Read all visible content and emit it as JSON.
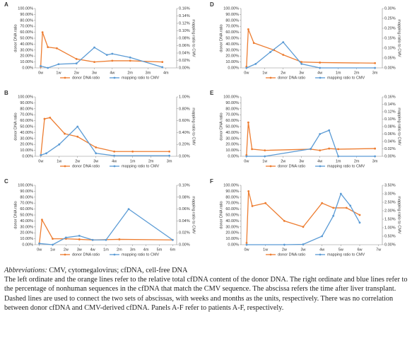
{
  "chart_data": [
    {
      "type": "line",
      "panel": "A",
      "ylabel": "donor DNA ratio",
      "y2label": "mapping ratio to CMV",
      "xlim": [
        -0.3,
        7.6
      ],
      "xticks": [
        {
          "value": 0,
          "label": "0w"
        },
        {
          "value": 1,
          "label": "1w"
        },
        {
          "value": 2,
          "label": "2w"
        },
        {
          "value": 3,
          "label": "3w"
        },
        {
          "value": 4,
          "label": "4w"
        },
        {
          "value": 5,
          "label": "2m"
        },
        {
          "value": 6,
          "label": "3m"
        },
        {
          "value": 7,
          "label": "4m"
        }
      ],
      "ylim": [
        0,
        100
      ],
      "yticks": [
        {
          "value": 0,
          "label": "0.00%"
        },
        {
          "value": 10,
          "label": "10.00%"
        },
        {
          "value": 20,
          "label": "20.00%"
        },
        {
          "value": 30,
          "label": "30.00%"
        },
        {
          "value": 40,
          "label": "40.00%"
        },
        {
          "value": 50,
          "label": "50.00%"
        },
        {
          "value": 60,
          "label": "60.00%"
        },
        {
          "value": 70,
          "label": "70.00%"
        },
        {
          "value": 80,
          "label": "80.00%"
        },
        {
          "value": 90,
          "label": "90.00%"
        },
        {
          "value": 100,
          "label": "100.00%"
        }
      ],
      "y2lim": [
        0,
        0.16
      ],
      "y2ticks": [
        {
          "value": 0,
          "label": "0.00%"
        },
        {
          "value": 0.02,
          "label": "0.02%"
        },
        {
          "value": 0.04,
          "label": "0.04%"
        },
        {
          "value": 0.06,
          "label": "0.06%"
        },
        {
          "value": 0.08,
          "label": "0.08%"
        },
        {
          "value": 0.1,
          "label": "0.10%"
        },
        {
          "value": 0.12,
          "label": "0.12%"
        },
        {
          "value": 0.14,
          "label": "0.14%"
        },
        {
          "value": 0.16,
          "label": "0.16%"
        }
      ],
      "series": [
        {
          "name": "donor DNA ratio",
          "color": "#ed7d31",
          "x": [
            0,
            0.1,
            0.4,
            0.9,
            2,
            3,
            4,
            5,
            6.8
          ],
          "values": [
            2,
            60,
            35,
            33,
            15,
            10,
            12,
            12,
            10
          ]
        },
        {
          "name": "mapping ratio to CMV",
          "color": "#5b9bd5",
          "axis": "y2",
          "x": [
            0,
            0.4,
            1,
            2,
            3,
            3.7,
            4,
            5,
            6.8
          ],
          "values": [
            0.005,
            0,
            0.01,
            0.012,
            0.055,
            0.035,
            0.038,
            0.028,
            0.002
          ]
        }
      ]
    },
    {
      "type": "line",
      "panel": "B",
      "ylabel": "donor DNA ratio",
      "y2label": "mapping ratio to CMV",
      "xlim": [
        -0.3,
        7.4
      ],
      "xticks": [
        {
          "value": 0,
          "label": "0w"
        },
        {
          "value": 1,
          "label": "1w"
        },
        {
          "value": 2,
          "label": "2w"
        },
        {
          "value": 3,
          "label": "3w"
        },
        {
          "value": 4,
          "label": "4w"
        },
        {
          "value": 5,
          "label": "1m"
        },
        {
          "value": 6,
          "label": "2m"
        },
        {
          "value": 7,
          "label": "3m"
        }
      ],
      "ylim": [
        0,
        100
      ],
      "yticks": [
        {
          "value": 0,
          "label": "0.00%"
        },
        {
          "value": 10,
          "label": "10.00%"
        },
        {
          "value": 20,
          "label": "20.00%"
        },
        {
          "value": 30,
          "label": "30.00%"
        },
        {
          "value": 40,
          "label": "40.00%"
        },
        {
          "value": 50,
          "label": "50.00%"
        },
        {
          "value": 60,
          "label": "60.00%"
        },
        {
          "value": 70,
          "label": "70.00%"
        },
        {
          "value": 80,
          "label": "80.00%"
        },
        {
          "value": 90,
          "label": "90.00%"
        },
        {
          "value": 100,
          "label": "100.00%"
        }
      ],
      "y2lim": [
        0,
        1
      ],
      "y2ticks": [
        {
          "value": 0,
          "label": "0.00%"
        },
        {
          "value": 0.2,
          "label": "0.20%"
        },
        {
          "value": 0.4,
          "label": "0.40%"
        },
        {
          "value": 0.6,
          "label": "0.60%"
        },
        {
          "value": 0.8,
          "label": "0.80%"
        },
        {
          "value": 1,
          "label": "1.00%"
        }
      ],
      "series": [
        {
          "name": "donor DNA ratio",
          "color": "#ed7d31",
          "x": [
            0,
            0.2,
            0.5,
            1.3,
            2,
            3,
            4,
            5,
            7
          ],
          "values": [
            2,
            63,
            65,
            38,
            33,
            15,
            8,
            8,
            8
          ]
        },
        {
          "name": "mapping ratio to CMV",
          "color": "#5b9bd5",
          "axis": "y2",
          "x": [
            0,
            0.3,
            1,
            2,
            3,
            4,
            7
          ],
          "values": [
            0.02,
            0.05,
            0.2,
            0.5,
            0.05,
            0.01,
            0.01
          ]
        }
      ]
    },
    {
      "type": "line",
      "panel": "C",
      "ylabel": "donor DNA ratio",
      "y2label": "mapping ratio to CMV",
      "xlim": [
        -0.3,
        10.3
      ],
      "xticks": [
        {
          "value": 0,
          "label": "0w"
        },
        {
          "value": 1,
          "label": "1w"
        },
        {
          "value": 2,
          "label": "2w"
        },
        {
          "value": 3,
          "label": "3w"
        },
        {
          "value": 4,
          "label": "4w"
        },
        {
          "value": 5,
          "label": "1m"
        },
        {
          "value": 6,
          "label": "2m"
        },
        {
          "value": 7,
          "label": "3m"
        },
        {
          "value": 8,
          "label": "4m"
        },
        {
          "value": 9,
          "label": "5m"
        },
        {
          "value": 10,
          "label": "6m"
        }
      ],
      "ylim": [
        0,
        100
      ],
      "yticks": [
        {
          "value": 0,
          "label": "0.00%"
        },
        {
          "value": 10,
          "label": "10.00%"
        },
        {
          "value": 20,
          "label": "20.00%"
        },
        {
          "value": 30,
          "label": "30.00%"
        },
        {
          "value": 40,
          "label": "40.00%"
        },
        {
          "value": 50,
          "label": "50.00%"
        },
        {
          "value": 60,
          "label": "60.00%"
        },
        {
          "value": 70,
          "label": "70.00%"
        },
        {
          "value": 80,
          "label": "80.00%"
        },
        {
          "value": 90,
          "label": "90.00%"
        },
        {
          "value": 100,
          "label": "100.00%"
        }
      ],
      "y2lim": [
        0,
        0.1
      ],
      "y2ticks": [
        {
          "value": 0,
          "label": "0.00%"
        },
        {
          "value": 0.02,
          "label": "0.02%"
        },
        {
          "value": 0.04,
          "label": "0.04%"
        },
        {
          "value": 0.06,
          "label": "0.06%"
        },
        {
          "value": 0.08,
          "label": "0.08%"
        },
        {
          "value": 0.1,
          "label": "0.10%"
        }
      ],
      "series": [
        {
          "name": "donor DNA ratio",
          "color": "#ed7d31",
          "x": [
            0,
            0.2,
            1,
            2,
            3,
            4,
            6,
            10
          ],
          "values": [
            2,
            42,
            10,
            10,
            9,
            8,
            9,
            8
          ]
        },
        {
          "name": "mapping ratio to CMV",
          "color": "#5b9bd5",
          "axis": "y2",
          "x": [
            0,
            1,
            2,
            3,
            4,
            5,
            6.7,
            10
          ],
          "values": [
            0.002,
            0,
            0.012,
            0.015,
            0.008,
            0.008,
            0.06,
            0.008
          ]
        }
      ]
    },
    {
      "type": "line",
      "panel": "D",
      "ylabel": "donor DNA ratio",
      "y2label": "mapping ratio to CMV",
      "xlim": [
        -0.3,
        7.4
      ],
      "xticks": [
        {
          "value": 0,
          "label": "0w"
        },
        {
          "value": 1,
          "label": "1w"
        },
        {
          "value": 2,
          "label": "2w"
        },
        {
          "value": 3,
          "label": "3w"
        },
        {
          "value": 4,
          "label": "4w"
        },
        {
          "value": 5,
          "label": "1m"
        },
        {
          "value": 6,
          "label": "2m"
        },
        {
          "value": 7,
          "label": "3m"
        }
      ],
      "ylim": [
        0,
        100
      ],
      "yticks": [
        {
          "value": 0,
          "label": "0.00%"
        },
        {
          "value": 10,
          "label": "10.00%"
        },
        {
          "value": 20,
          "label": "20.00%"
        },
        {
          "value": 30,
          "label": "30.00%"
        },
        {
          "value": 40,
          "label": "40.00%"
        },
        {
          "value": 50,
          "label": "50.00%"
        },
        {
          "value": 60,
          "label": "60.00%"
        },
        {
          "value": 70,
          "label": "70.00%"
        },
        {
          "value": 80,
          "label": "80.00%"
        },
        {
          "value": 90,
          "label": "90.00%"
        },
        {
          "value": 100,
          "label": "100.00%"
        }
      ],
      "y2lim": [
        0,
        0.3
      ],
      "y2ticks": [
        {
          "value": 0,
          "label": "0.00%"
        },
        {
          "value": 0.05,
          "label": "0.05%"
        },
        {
          "value": 0.1,
          "label": "0.10%"
        },
        {
          "value": 0.15,
          "label": "0.15%"
        },
        {
          "value": 0.2,
          "label": "0.20%"
        },
        {
          "value": 0.25,
          "label": "0.25%"
        },
        {
          "value": 0.3,
          "label": "0.30%"
        }
      ],
      "series": [
        {
          "name": "donor DNA ratio",
          "color": "#ed7d31",
          "x": [
            0,
            0.1,
            0.4,
            1.5,
            2,
            3,
            4,
            7
          ],
          "values": [
            2,
            65,
            42,
            30,
            22,
            10,
            9,
            8
          ]
        },
        {
          "name": "mapping ratio to CMV",
          "color": "#5b9bd5",
          "axis": "y2",
          "x": [
            0,
            0.5,
            1.3,
            2,
            3,
            4,
            7
          ],
          "values": [
            0,
            0.02,
            0.08,
            0.13,
            0.02,
            0,
            0
          ]
        }
      ]
    },
    {
      "type": "line",
      "panel": "E",
      "ylabel": "donor DNA ratio",
      "y2label": "mapping ratio to CMV",
      "xlim": [
        -0.3,
        7.4
      ],
      "xticks": [
        {
          "value": 0,
          "label": "0w"
        },
        {
          "value": 1,
          "label": "1w"
        },
        {
          "value": 2,
          "label": "2w"
        },
        {
          "value": 3,
          "label": "3w"
        },
        {
          "value": 4,
          "label": "4w"
        },
        {
          "value": 5,
          "label": "1m"
        },
        {
          "value": 6,
          "label": "2m"
        },
        {
          "value": 7,
          "label": "3m"
        }
      ],
      "ylim": [
        0,
        100
      ],
      "yticks": [
        {
          "value": 0,
          "label": "0.00%"
        },
        {
          "value": 10,
          "label": "10.00%"
        },
        {
          "value": 20,
          "label": "20.00%"
        },
        {
          "value": 30,
          "label": "30.00%"
        },
        {
          "value": 40,
          "label": "40.00%"
        },
        {
          "value": 50,
          "label": "50.00%"
        },
        {
          "value": 60,
          "label": "60.00%"
        },
        {
          "value": 70,
          "label": "70.00%"
        },
        {
          "value": 80,
          "label": "80.00%"
        },
        {
          "value": 90,
          "label": "90.00%"
        },
        {
          "value": 100,
          "label": "100.00%"
        }
      ],
      "y2lim": [
        0,
        0.16
      ],
      "y2ticks": [
        {
          "value": 0,
          "label": "0.00%"
        },
        {
          "value": 0.02,
          "label": "0.02%"
        },
        {
          "value": 0.04,
          "label": "0.04%"
        },
        {
          "value": 0.06,
          "label": "0.06%"
        },
        {
          "value": 0.08,
          "label": "0.08%"
        },
        {
          "value": 0.1,
          "label": "0.10%"
        },
        {
          "value": 0.12,
          "label": "0.12%"
        },
        {
          "value": 0.14,
          "label": "0.14%"
        },
        {
          "value": 0.16,
          "label": "0.16%"
        }
      ],
      "series": [
        {
          "name": "donor DNA ratio",
          "color": "#ed7d31",
          "x": [
            0,
            0.1,
            0.3,
            1,
            3.5,
            4,
            4.5,
            5,
            7
          ],
          "values": [
            2,
            57,
            12,
            10,
            12,
            10,
            13,
            12,
            13
          ]
        },
        {
          "name": "mapping ratio to CMV",
          "color": "#5b9bd5",
          "axis": "y2",
          "x": [
            0,
            1,
            3.5,
            4,
            4.5,
            5,
            7
          ],
          "values": [
            0,
            0,
            0.02,
            0.06,
            0.07,
            0,
            0
          ]
        }
      ]
    },
    {
      "type": "line",
      "panel": "F",
      "ylabel": "donor DNA ratio",
      "y2label": "mapping ratio to CMV",
      "xlim": [
        -0.3,
        7.2
      ],
      "xticks": [
        {
          "value": 0,
          "label": "0w"
        },
        {
          "value": 1,
          "label": "1w"
        },
        {
          "value": 2,
          "label": "2w"
        },
        {
          "value": 3,
          "label": "3w"
        },
        {
          "value": 4,
          "label": "4w"
        },
        {
          "value": 5,
          "label": "5w"
        },
        {
          "value": 6,
          "label": "6w"
        },
        {
          "value": 7,
          "label": "7w"
        }
      ],
      "ylim": [
        0,
        100
      ],
      "yticks": [
        {
          "value": 0,
          "label": "0.00%"
        },
        {
          "value": 10,
          "label": "10.00%"
        },
        {
          "value": 20,
          "label": "20.00%"
        },
        {
          "value": 30,
          "label": "30.00%"
        },
        {
          "value": 40,
          "label": "40.00%"
        },
        {
          "value": 50,
          "label": "50.00%"
        },
        {
          "value": 60,
          "label": "60.00%"
        },
        {
          "value": 70,
          "label": "70.00%"
        },
        {
          "value": 80,
          "label": "80.00%"
        },
        {
          "value": 90,
          "label": "90.00%"
        },
        {
          "value": 100,
          "label": "100.00%"
        }
      ],
      "y2lim": [
        0,
        3.5
      ],
      "y2ticks": [
        {
          "value": 0,
          "label": "0.00%"
        },
        {
          "value": 0.5,
          "label": "0.50%"
        },
        {
          "value": 1,
          "label": "1.00%"
        },
        {
          "value": 1.5,
          "label": "1.50%"
        },
        {
          "value": 2,
          "label": "2.00%"
        },
        {
          "value": 2.5,
          "label": "2.50%"
        },
        {
          "value": 3,
          "label": "3.00%"
        },
        {
          "value": 3.5,
          "label": "3.50%"
        }
      ],
      "series": [
        {
          "name": "donor DNA ratio",
          "color": "#ed7d31",
          "x": [
            0,
            0.1,
            0.3,
            1,
            2,
            3,
            4,
            4.6,
            5.3,
            6
          ],
          "values": [
            3,
            90,
            65,
            70,
            40,
            30,
            70,
            62,
            62,
            50
          ]
        },
        {
          "name": "mapping ratio to CMV",
          "color": "#5b9bd5",
          "axis": "y2",
          "x": [
            0,
            2,
            3,
            4,
            4.6,
            5,
            5.5,
            6
          ],
          "values": [
            0,
            0,
            0.02,
            0.5,
            1.7,
            3,
            2.3,
            1.3
          ]
        }
      ]
    }
  ],
  "caption": {
    "abbreviations_label": "Abbreviations:",
    "abbreviations_text": "CMV, cytomegalovirus; cfDNA, cell-free DNA",
    "text": "The left ordinate and the orange lines refer to the relative total cfDNA content of the donor DNA. The right ordinate and blue lines refer to the percentage of nonhuman sequences in the cfDNA that match the CMV sequence. The abscissa refers the time after liver transplant. Dashed lines are used to connect the two sets of abscissas, with weeks and months as the units, respectively. There was no correlation between donor cfDNA and CMV-derived cfDNA. Panels A-F refer to patients A-F, respectively."
  }
}
